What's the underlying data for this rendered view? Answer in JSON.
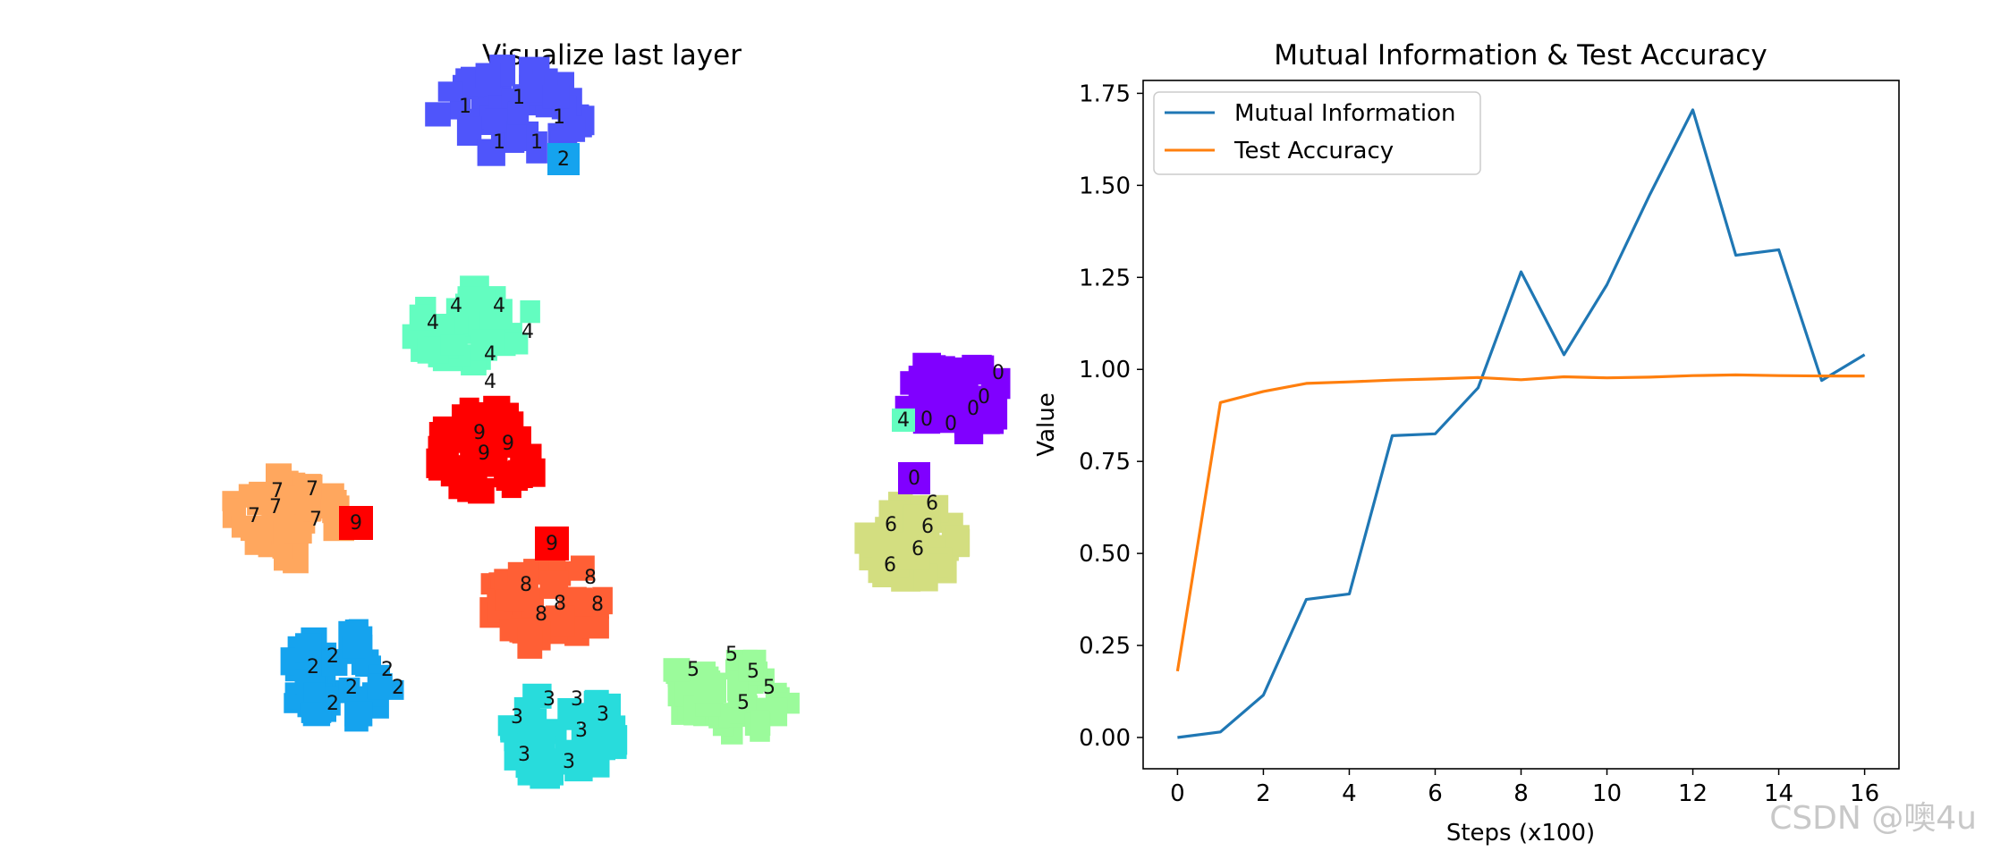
{
  "watermark": "CSDN @噢4u",
  "chart_data": [
    {
      "type": "scatter",
      "title": "Visualize last layer",
      "clusters": [
        {
          "digit": "1",
          "color": "#4f55fb"
        },
        {
          "digit": "2",
          "color": "#15a3ee"
        },
        {
          "digit": "4",
          "color": "#63fdc0"
        },
        {
          "digit": "9",
          "color": "#ff0000"
        },
        {
          "digit": "7",
          "color": "#ffa75e"
        },
        {
          "digit": "8",
          "color": "#ff5f35"
        },
        {
          "digit": "3",
          "color": "#28dcdc"
        },
        {
          "digit": "5",
          "color": "#9bfb9b"
        },
        {
          "digit": "0",
          "color": "#8000ff"
        },
        {
          "digit": "6",
          "color": "#d3de80"
        }
      ]
    },
    {
      "type": "line",
      "title": "Mutual Information & Test Accuracy",
      "xlabel": "Steps (x100)",
      "ylabel": "Value",
      "xlim": [
        -0.8,
        16.8
      ],
      "ylim": [
        -0.085,
        1.785
      ],
      "xticks": [
        "0",
        "2",
        "4",
        "6",
        "8",
        "10",
        "12",
        "14",
        "16"
      ],
      "yticks": [
        "0.00",
        "0.25",
        "0.50",
        "0.75",
        "1.00",
        "1.25",
        "1.50",
        "1.75"
      ],
      "legend_position": "upper-left",
      "x": [
        0,
        1,
        2,
        3,
        4,
        5,
        6,
        7,
        8,
        9,
        10,
        11,
        12,
        13,
        14,
        15,
        16
      ],
      "series": [
        {
          "name": "Mutual Information",
          "color": "#1f77b4",
          "values": [
            0.0,
            0.015,
            0.115,
            0.375,
            0.39,
            0.82,
            0.825,
            0.95,
            1.265,
            1.04,
            1.23,
            1.475,
            1.705,
            1.31,
            1.325,
            0.97,
            1.04
          ]
        },
        {
          "name": "Test Accuracy",
          "color": "#ff7f0e",
          "values": [
            0.18,
            0.91,
            0.94,
            0.962,
            0.966,
            0.971,
            0.974,
            0.978,
            0.972,
            0.98,
            0.977,
            0.979,
            0.983,
            0.985,
            0.983,
            0.982,
            0.982
          ]
        }
      ]
    }
  ]
}
